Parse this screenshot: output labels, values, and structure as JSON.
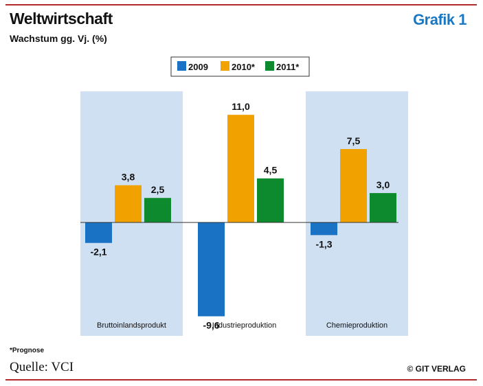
{
  "header": {
    "title": "Weltwirtschaft",
    "subtitle": "Wachstum gg. Vj. (%)",
    "badge": "Grafik 1"
  },
  "chart_data": {
    "type": "bar",
    "title": "Weltwirtschaft",
    "ylabel": "Wachstum gg. Vj. (%)",
    "xlabel": "",
    "categories": [
      "Bruttoinlandsprodukt",
      "Industrieproduktion",
      "Chemieproduktion"
    ],
    "shaded_categories": [
      true,
      false,
      true
    ],
    "series": [
      {
        "name": "2009",
        "color": "#1a72c4",
        "values": [
          -2.1,
          -9.6,
          -1.3
        ],
        "labels": [
          "-2,1",
          "-9,6",
          "-1,3"
        ]
      },
      {
        "name": "2010*",
        "color": "#f2a200",
        "values": [
          3.8,
          11.0,
          7.5
        ],
        "labels": [
          "3,8",
          "11,0",
          "7,5"
        ]
      },
      {
        "name": "2011*",
        "color": "#0e8a2e",
        "values": [
          2.5,
          4.5,
          3.0
        ],
        "labels": [
          "2,5",
          "4,5",
          "3,0"
        ]
      }
    ],
    "ylim": [
      -11.6,
      13.4
    ],
    "grid": false,
    "legend": "top-center",
    "panel_color": "#cfe0f2"
  },
  "footer": {
    "footnote": "*Prognose",
    "source": "Quelle: VCI",
    "publisher": "© GIT VERLAG"
  }
}
